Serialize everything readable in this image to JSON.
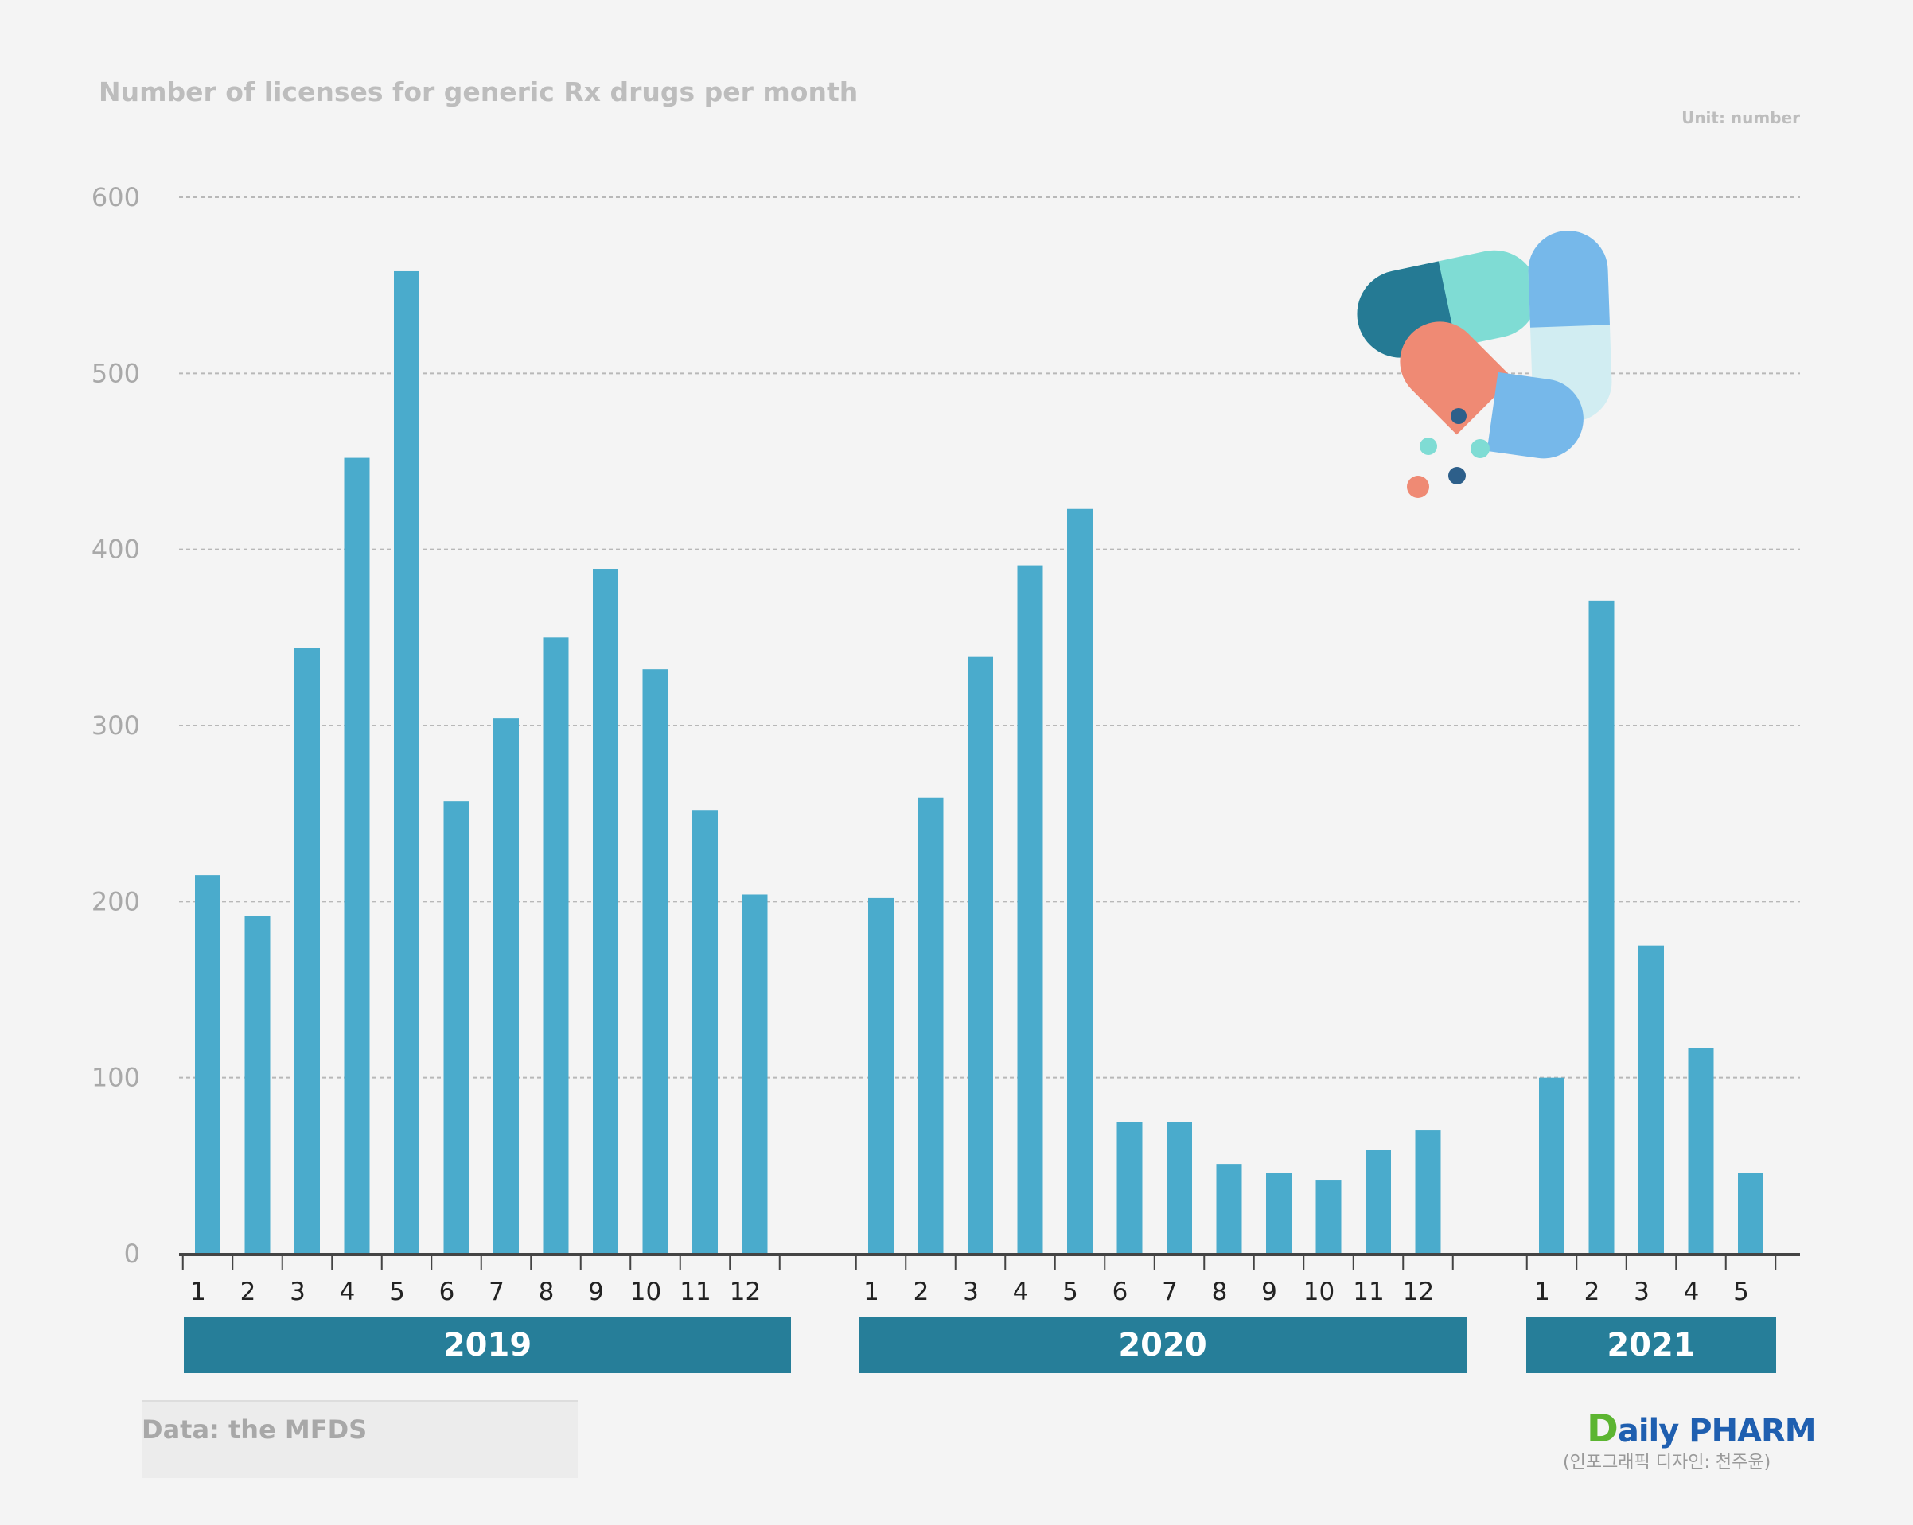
{
  "chart_data": {
    "type": "bar",
    "title": "Number of licenses for generic Rx drugs per month",
    "unit_label": "Unit: number",
    "xlabel": "",
    "ylabel": "",
    "ylim": [
      0,
      600
    ],
    "yticks": [
      0,
      100,
      200,
      300,
      400,
      500,
      600
    ],
    "grid": true,
    "bar_color": "#4aabcc",
    "year_band_color": "#267e99",
    "groups": [
      {
        "year": "2019",
        "months": [
          "1",
          "2",
          "3",
          "4",
          "5",
          "6",
          "7",
          "8",
          "9",
          "10",
          "11",
          "12"
        ],
        "values": [
          215,
          192,
          344,
          452,
          558,
          257,
          304,
          350,
          389,
          332,
          252,
          204
        ]
      },
      {
        "year": "2020",
        "months": [
          "1",
          "2",
          "3",
          "4",
          "5",
          "6",
          "7",
          "8",
          "9",
          "10",
          "11",
          "12"
        ],
        "values": [
          202,
          259,
          339,
          391,
          423,
          75,
          75,
          51,
          46,
          42,
          59,
          70
        ]
      },
      {
        "year": "2021",
        "months": [
          "1",
          "2",
          "3",
          "4",
          "5"
        ],
        "values": [
          100,
          371,
          175,
          117,
          46
        ]
      }
    ]
  },
  "footer": {
    "source": "Data: the MFDS",
    "logo_text": "DailyPHARM",
    "logo_initial": "D",
    "logo_rest": "aily PHARM",
    "credit": "(인포그래픽 디자인: 천주윤)"
  }
}
